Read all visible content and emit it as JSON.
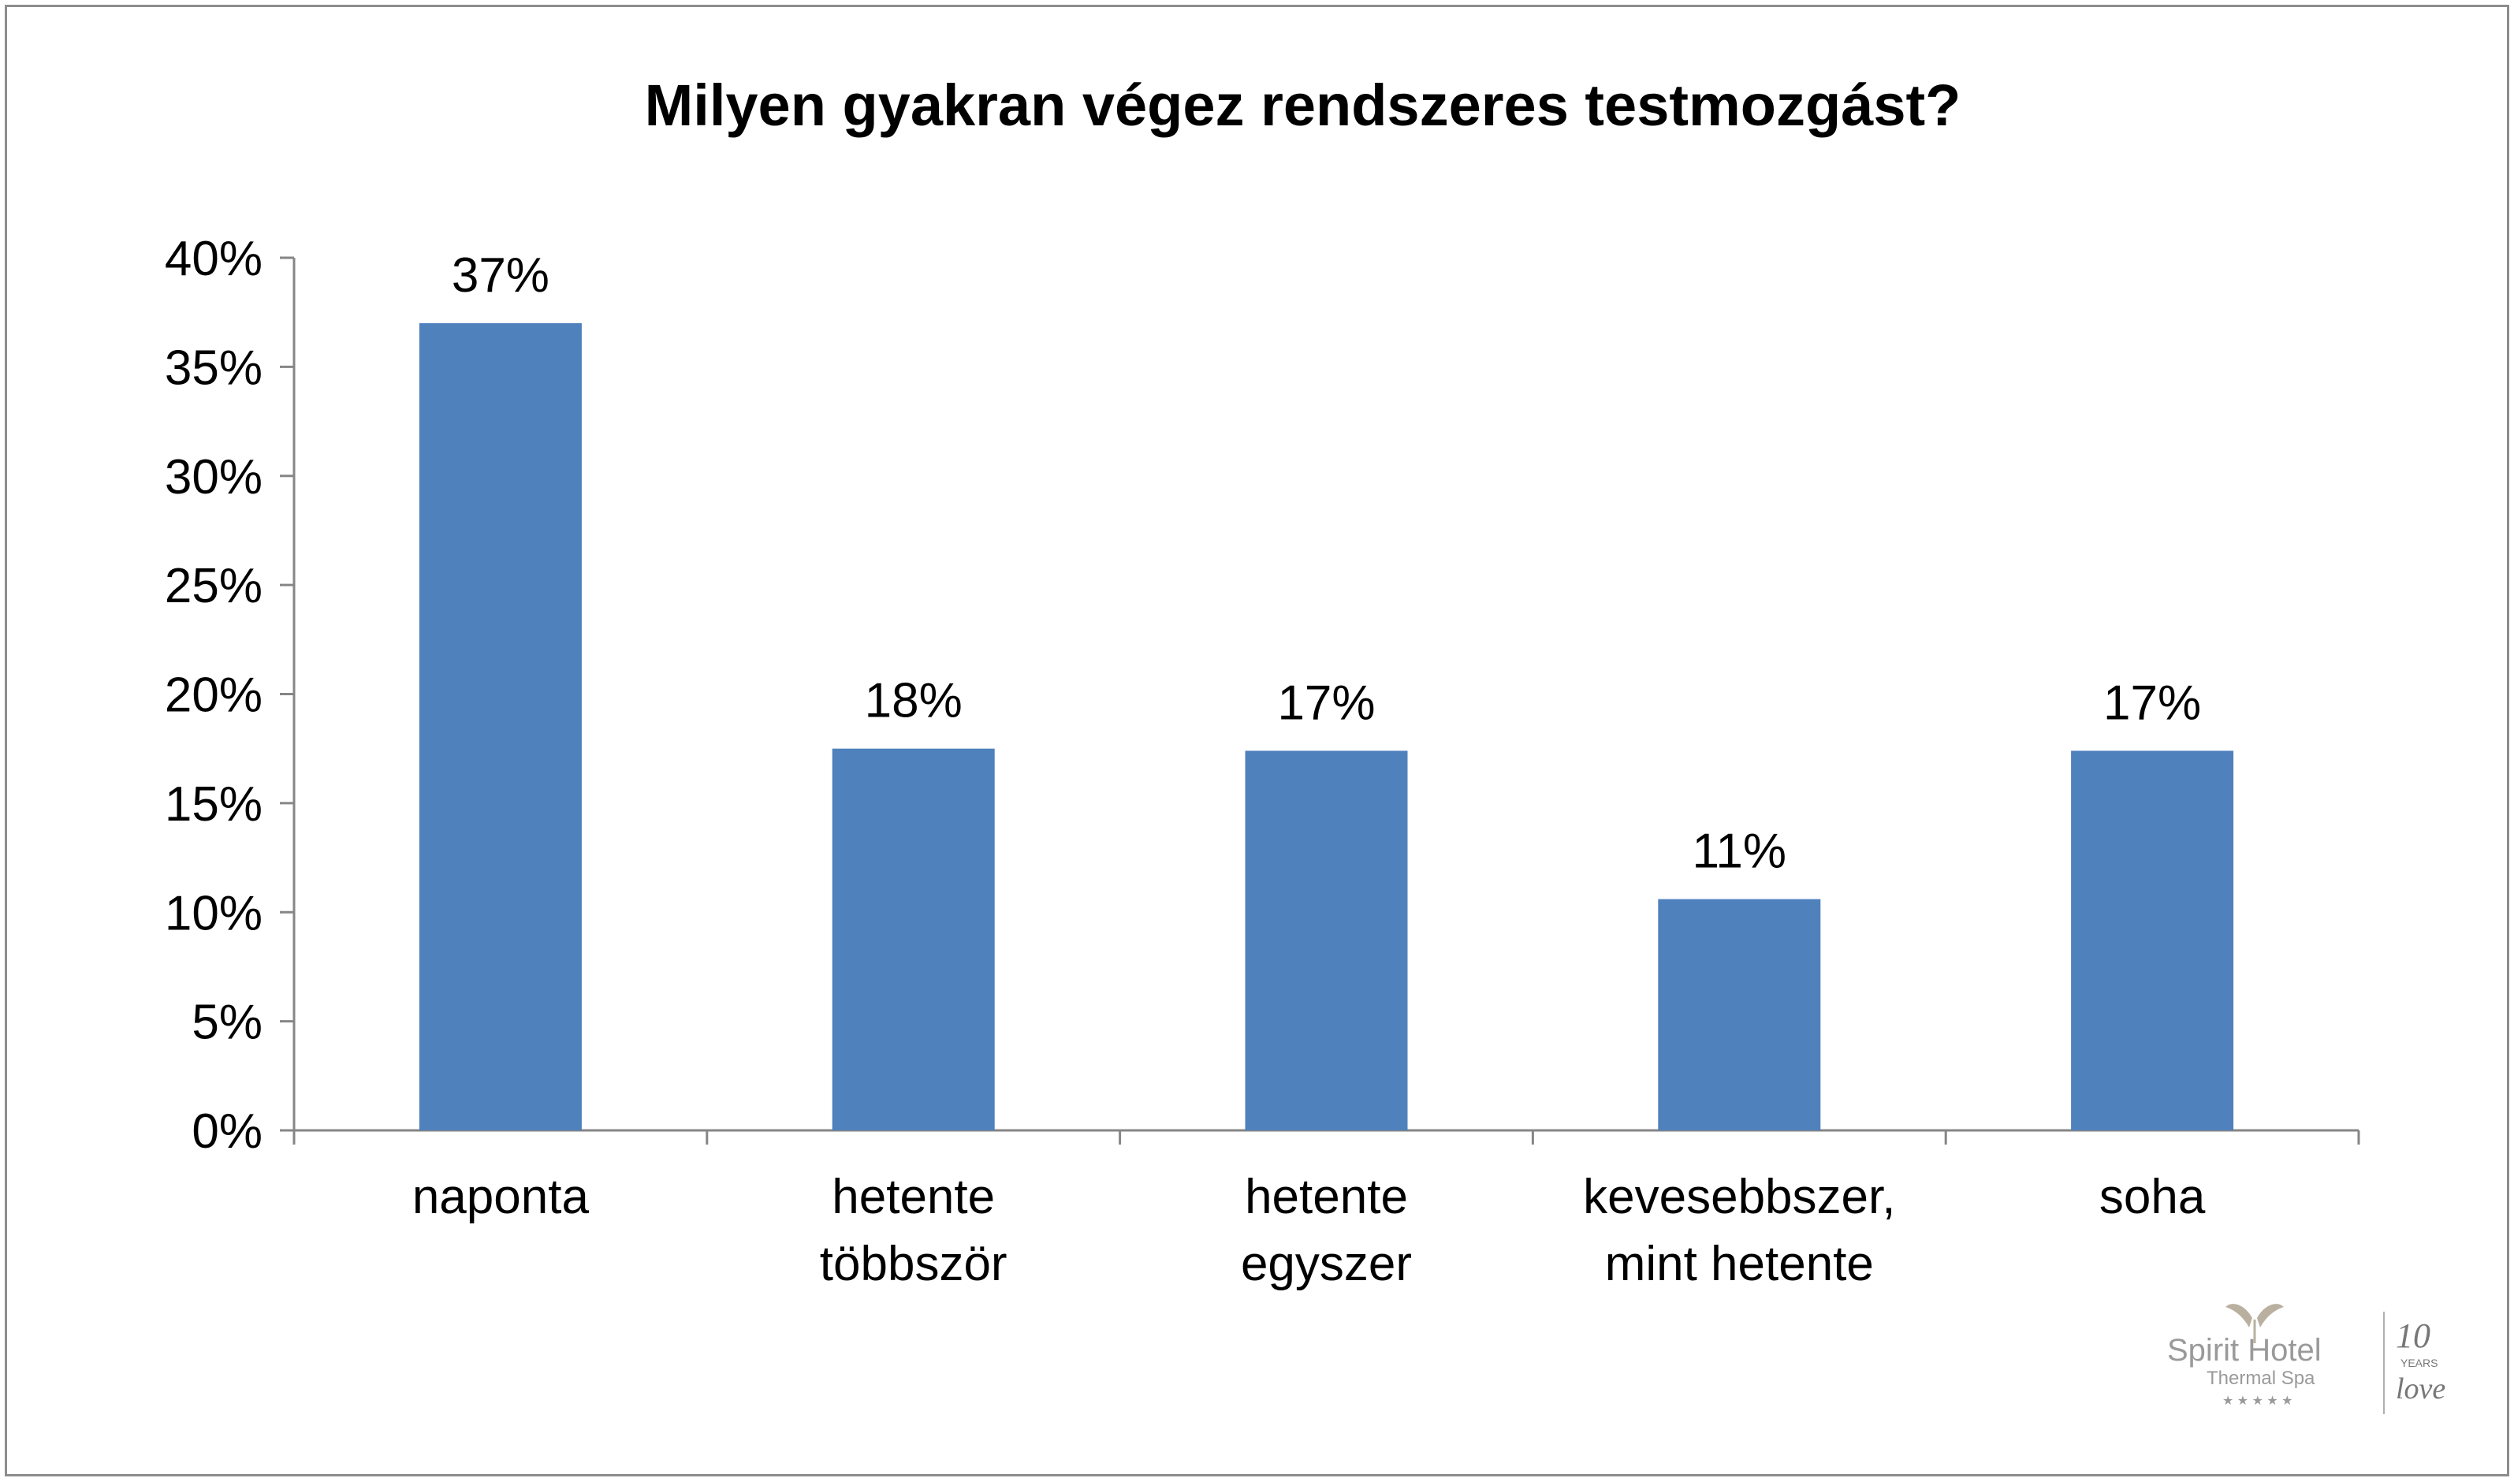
{
  "chart_data": {
    "type": "bar",
    "title": "Milyen gyakran végez rendszeres testmozgást?",
    "xlabel": "",
    "ylabel": "",
    "categories": [
      [
        "naponta"
      ],
      [
        "hetente",
        "többször"
      ],
      [
        "hetente",
        "egyszer"
      ],
      [
        "kevesebbszer,",
        "mint hetente"
      ],
      [
        "soha"
      ]
    ],
    "values": [
      37,
      17.5,
      17.4,
      10.6,
      17.4
    ],
    "data_labels": [
      "37%",
      "18%",
      "17%",
      "11%",
      "17%"
    ],
    "ylim": [
      0,
      40
    ],
    "yticks": [
      0,
      5,
      10,
      15,
      20,
      25,
      30,
      35,
      40
    ],
    "ytick_labels": [
      "0%",
      "5%",
      "10%",
      "15%",
      "20%",
      "25%",
      "30%",
      "35%",
      "40%"
    ],
    "grid": false,
    "legend": "none",
    "bar_color": "#4f81bd"
  },
  "logo": {
    "brand": "Spirit Hotel",
    "sub": "Thermal Spa",
    "years_number": "10",
    "years_word": "YEARS",
    "love": "love"
  }
}
